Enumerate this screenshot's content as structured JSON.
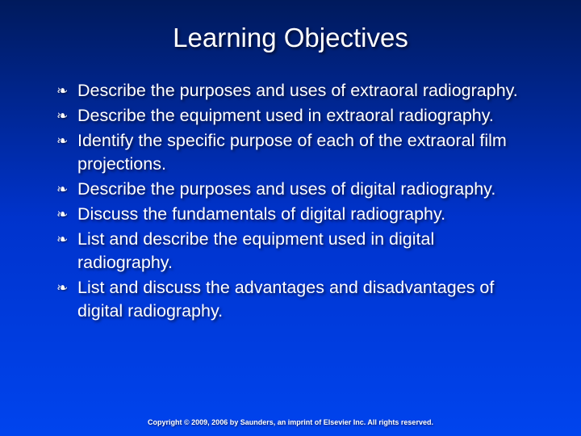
{
  "slide": {
    "title": "Learning Objectives",
    "bullets": [
      "Describe the purposes and uses of extraoral radiography.",
      "Describe the equipment used in extraoral radiography.",
      "Identify the specific purpose of each of the extraoral film projections.",
      "Describe the purposes and uses of digital radiography.",
      "Discuss the fundamentals of digital radiography.",
      "List and describe the equipment used in digital radiography.",
      "List and discuss the advantages and disadvantages of digital radiography."
    ],
    "footer": "Copyright © 2009, 2006 by Saunders, an imprint of Elsevier Inc. All rights reserved.",
    "bullet_glyph": "❧",
    "styling": {
      "background_gradient_top": "#001a5c",
      "background_gradient_mid": "#0033cc",
      "background_gradient_bottom": "#0044ee",
      "text_color": "#ffffff",
      "title_fontsize": 33,
      "body_fontsize": 21.5,
      "footer_fontsize": 9,
      "shadow_color": "rgba(0,0,0,0.6)"
    }
  }
}
